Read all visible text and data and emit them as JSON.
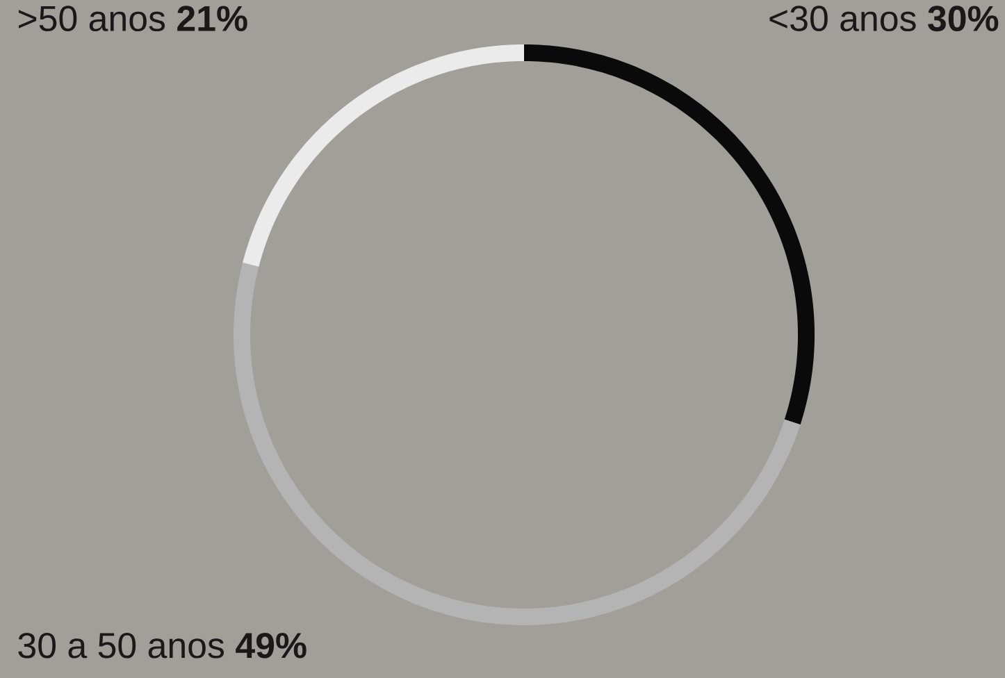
{
  "chart_data": {
    "type": "donut",
    "categories": [
      "<30 anos",
      "30 a 50 anos",
      ">50 anos"
    ],
    "values": [
      30,
      49,
      21
    ],
    "value_labels": [
      "30%",
      "49%",
      "21%"
    ],
    "colors": [
      "#0a0a0a",
      "#b4b4b4",
      "#ebebeb"
    ]
  }
}
